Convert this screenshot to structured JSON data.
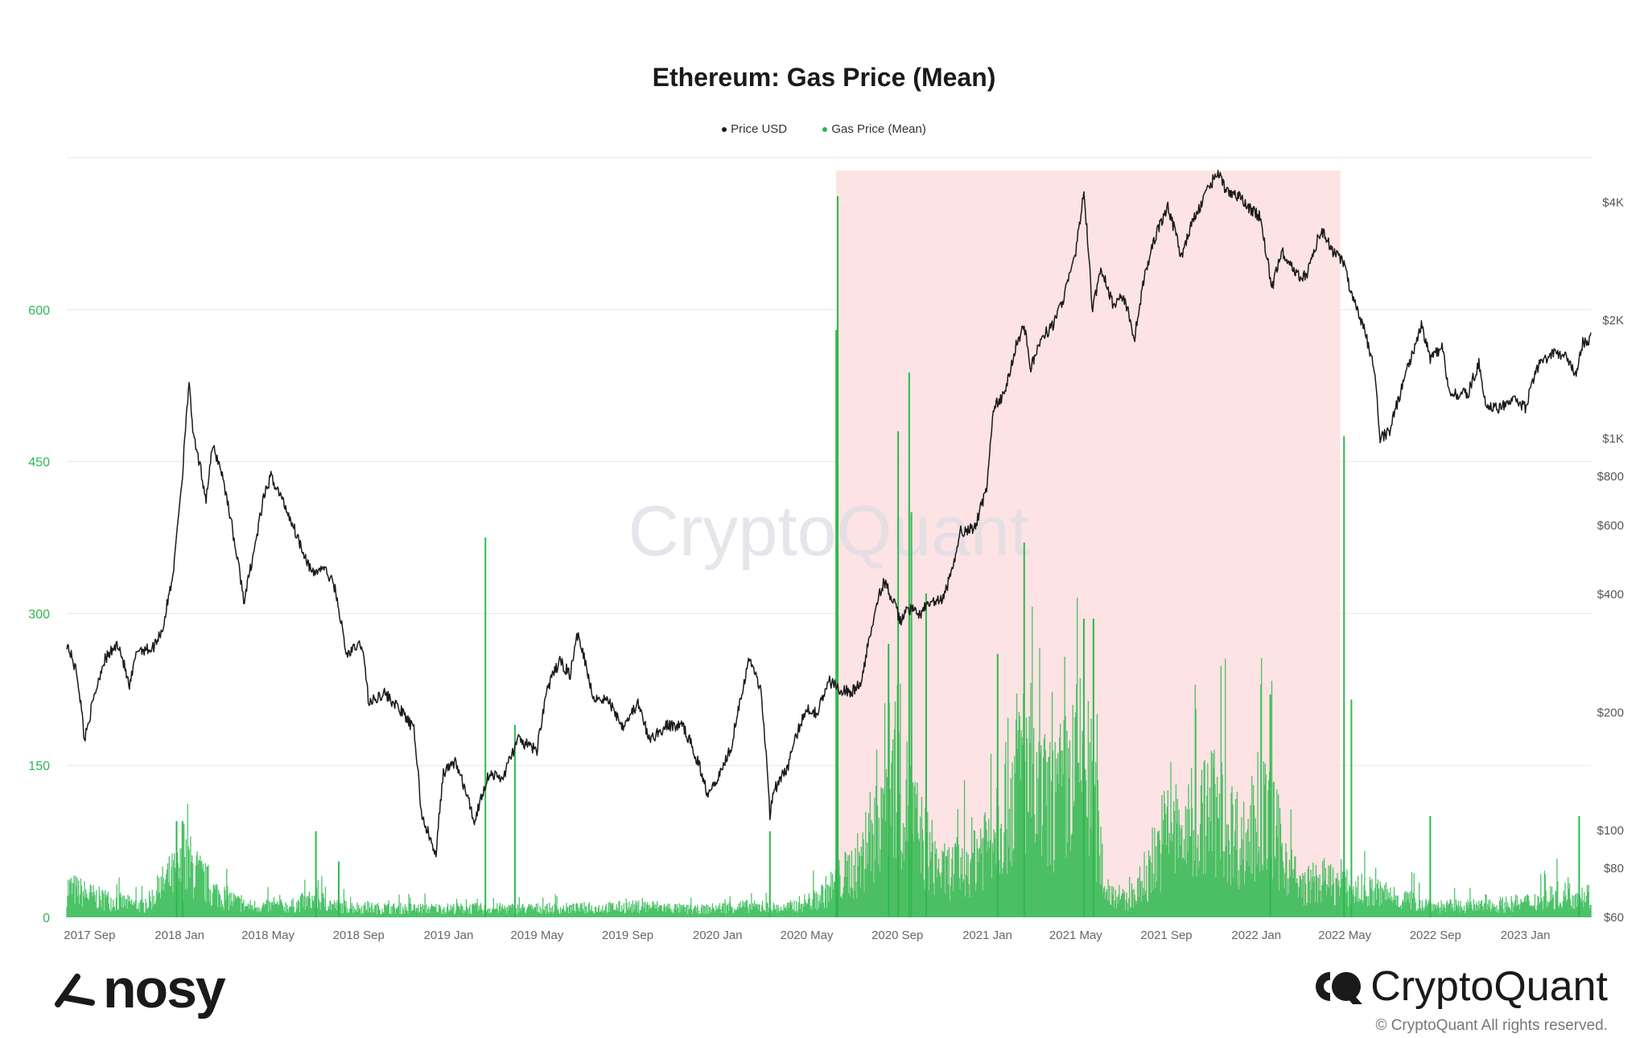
{
  "chart_data": {
    "type": "line",
    "title": "Ethereum: Gas Price (Mean)",
    "legend_placement": "top-center",
    "grid": true,
    "watermark": "CryptoQuant",
    "x_range": [
      "2017-08-01",
      "2023-04-01"
    ],
    "x_ticks": [
      "2017 Sep",
      "2018 Jan",
      "2018 May",
      "2018 Sep",
      "2019 Jan",
      "2019 May",
      "2019 Sep",
      "2020 Jan",
      "2020 May",
      "2020 Sep",
      "2021 Jan",
      "2021 May",
      "2021 Sep",
      "2022 Jan",
      "2022 May",
      "2022 Sep",
      "2023 Jan"
    ],
    "left_axis": {
      "scale": "linear",
      "range": [
        0,
        750
      ],
      "ticks": [
        0,
        150,
        300,
        450,
        600
      ],
      "tick_labels": [
        "0",
        "150",
        "300",
        "450",
        "600"
      ]
    },
    "right_axis": {
      "scale": "log",
      "range": [
        60,
        5200
      ],
      "ticks": [
        60,
        80,
        100,
        200,
        400,
        600,
        800,
        1000,
        2000,
        4000
      ],
      "tick_labels": [
        "$60",
        "$80",
        "$100",
        "$200",
        "$400",
        "$600",
        "$800",
        "$1K",
        "$2K",
        "$4K"
      ]
    },
    "highlight_region": {
      "x_start": "2020-06-10",
      "x_end": "2022-04-25",
      "color": "#fde1e1"
    },
    "series": [
      {
        "name": "Price USD",
        "axis": "right",
        "color": "#1a1a1a",
        "style": "line",
        "points": [
          [
            "2017-08-01",
            300
          ],
          [
            "2017-08-15",
            250
          ],
          [
            "2017-08-25",
            170
          ],
          [
            "2017-09-05",
            210
          ],
          [
            "2017-09-20",
            270
          ],
          [
            "2017-10-10",
            300
          ],
          [
            "2017-10-25",
            230
          ],
          [
            "2017-11-05",
            290
          ],
          [
            "2017-11-25",
            290
          ],
          [
            "2017-12-10",
            330
          ],
          [
            "2017-12-20",
            420
          ],
          [
            "2017-12-25",
            480
          ],
          [
            "2018-01-05",
            800
          ],
          [
            "2018-01-10",
            1150
          ],
          [
            "2018-01-14",
            1350
          ],
          [
            "2018-01-20",
            1000
          ],
          [
            "2018-02-06",
            700
          ],
          [
            "2018-02-15",
            950
          ],
          [
            "2018-02-25",
            850
          ],
          [
            "2018-03-18",
            520
          ],
          [
            "2018-03-30",
            380
          ],
          [
            "2018-04-15",
            550
          ],
          [
            "2018-04-25",
            700
          ],
          [
            "2018-05-05",
            800
          ],
          [
            "2018-05-20",
            700
          ],
          [
            "2018-06-10",
            560
          ],
          [
            "2018-06-30",
            450
          ],
          [
            "2018-07-15",
            470
          ],
          [
            "2018-07-30",
            420
          ],
          [
            "2018-08-15",
            280
          ],
          [
            "2018-09-05",
            300
          ],
          [
            "2018-09-15",
            210
          ],
          [
            "2018-10-05",
            225
          ],
          [
            "2018-10-30",
            200
          ],
          [
            "2018-11-15",
            180
          ],
          [
            "2018-11-25",
            110
          ],
          [
            "2018-12-15",
            85
          ],
          [
            "2018-12-25",
            140
          ],
          [
            "2019-01-10",
            150
          ],
          [
            "2019-02-05",
            105
          ],
          [
            "2019-02-25",
            140
          ],
          [
            "2019-03-15",
            135
          ],
          [
            "2019-04-05",
            170
          ],
          [
            "2019-05-01",
            160
          ],
          [
            "2019-05-15",
            230
          ],
          [
            "2019-06-01",
            270
          ],
          [
            "2019-06-15",
            250
          ],
          [
            "2019-06-26",
            320
          ],
          [
            "2019-07-15",
            220
          ],
          [
            "2019-08-05",
            215
          ],
          [
            "2019-08-25",
            185
          ],
          [
            "2019-09-15",
            210
          ],
          [
            "2019-09-30",
            170
          ],
          [
            "2019-10-25",
            185
          ],
          [
            "2019-11-15",
            185
          ],
          [
            "2019-12-05",
            150
          ],
          [
            "2019-12-18",
            125
          ],
          [
            "2020-01-05",
            140
          ],
          [
            "2020-01-20",
            165
          ],
          [
            "2020-02-14",
            275
          ],
          [
            "2020-02-28",
            230
          ],
          [
            "2020-03-12",
            110
          ],
          [
            "2020-03-16",
            125
          ],
          [
            "2020-04-05",
            145
          ],
          [
            "2020-04-30",
            205
          ],
          [
            "2020-05-15",
            200
          ],
          [
            "2020-06-01",
            240
          ],
          [
            "2020-06-15",
            230
          ],
          [
            "2020-07-01",
            225
          ],
          [
            "2020-07-15",
            240
          ],
          [
            "2020-07-25",
            310
          ],
          [
            "2020-08-05",
            390
          ],
          [
            "2020-08-14",
            430
          ],
          [
            "2020-08-25",
            390
          ],
          [
            "2020-09-05",
            340
          ],
          [
            "2020-09-15",
            370
          ],
          [
            "2020-09-30",
            355
          ],
          [
            "2020-10-15",
            380
          ],
          [
            "2020-11-01",
            385
          ],
          [
            "2020-11-15",
            460
          ],
          [
            "2020-11-25",
            580
          ],
          [
            "2020-12-15",
            590
          ],
          [
            "2020-12-31",
            740
          ],
          [
            "2021-01-10",
            1200
          ],
          [
            "2021-01-25",
            1300
          ],
          [
            "2021-02-10",
            1750
          ],
          [
            "2021-02-20",
            1950
          ],
          [
            "2021-03-01",
            1500
          ],
          [
            "2021-03-15",
            1800
          ],
          [
            "2021-04-01",
            1950
          ],
          [
            "2021-04-15",
            2300
          ],
          [
            "2021-05-01",
            2950
          ],
          [
            "2021-05-12",
            4200
          ],
          [
            "2021-05-23",
            2100
          ],
          [
            "2021-06-05",
            2700
          ],
          [
            "2021-06-20",
            2200
          ],
          [
            "2021-07-05",
            2300
          ],
          [
            "2021-07-20",
            1800
          ],
          [
            "2021-08-01",
            2500
          ],
          [
            "2021-08-15",
            3200
          ],
          [
            "2021-09-03",
            3900
          ],
          [
            "2021-09-21",
            2900
          ],
          [
            "2021-10-05",
            3500
          ],
          [
            "2021-10-25",
            4200
          ],
          [
            "2021-11-09",
            4800
          ],
          [
            "2021-11-20",
            4300
          ],
          [
            "2021-12-05",
            4200
          ],
          [
            "2021-12-20",
            3900
          ],
          [
            "2022-01-05",
            3700
          ],
          [
            "2022-01-22",
            2400
          ],
          [
            "2022-02-05",
            3000
          ],
          [
            "2022-02-25",
            2600
          ],
          [
            "2022-03-10",
            2600
          ],
          [
            "2022-03-30",
            3400
          ],
          [
            "2022-04-15",
            3000
          ],
          [
            "2022-04-30",
            2800
          ],
          [
            "2022-05-10",
            2300
          ],
          [
            "2022-05-25",
            1950
          ],
          [
            "2022-06-10",
            1500
          ],
          [
            "2022-06-18",
            1000
          ],
          [
            "2022-07-01",
            1050
          ],
          [
            "2022-07-15",
            1300
          ],
          [
            "2022-08-01",
            1650
          ],
          [
            "2022-08-13",
            1950
          ],
          [
            "2022-08-25",
            1600
          ],
          [
            "2022-09-10",
            1700
          ],
          [
            "2022-09-20",
            1300
          ],
          [
            "2022-10-15",
            1300
          ],
          [
            "2022-10-30",
            1550
          ],
          [
            "2022-11-09",
            1200
          ],
          [
            "2022-11-25",
            1200
          ],
          [
            "2022-12-15",
            1250
          ],
          [
            "2023-01-01",
            1200
          ],
          [
            "2023-01-20",
            1550
          ],
          [
            "2023-02-10",
            1650
          ],
          [
            "2023-02-28",
            1600
          ],
          [
            "2023-03-10",
            1450
          ],
          [
            "2023-03-20",
            1750
          ],
          [
            "2023-03-31",
            1800
          ]
        ]
      },
      {
        "name": "Gas Price (Mean)",
        "axis": "left",
        "color": "#2db84d",
        "style": "area-bars",
        "points": [
          [
            "2017-08-01",
            40
          ],
          [
            "2017-09-15",
            25
          ],
          [
            "2017-11-15",
            15
          ],
          [
            "2017-12-15",
            50
          ],
          [
            "2018-01-15",
            70
          ],
          [
            "2018-02-15",
            35
          ],
          [
            "2018-04-01",
            15
          ],
          [
            "2018-06-01",
            15
          ],
          [
            "2018-07-05",
            25
          ],
          [
            "2018-08-01",
            15
          ],
          [
            "2018-10-01",
            12
          ],
          [
            "2019-01-01",
            12
          ],
          [
            "2019-04-01",
            12
          ],
          [
            "2019-07-01",
            12
          ],
          [
            "2019-10-01",
            15
          ],
          [
            "2019-12-01",
            10
          ],
          [
            "2020-02-01",
            15
          ],
          [
            "2020-04-01",
            12
          ],
          [
            "2020-05-15",
            25
          ],
          [
            "2020-06-15",
            50
          ],
          [
            "2020-07-15",
            75
          ],
          [
            "2020-08-01",
            130
          ],
          [
            "2020-08-15",
            180
          ],
          [
            "2020-09-01",
            210
          ],
          [
            "2020-09-15",
            150
          ],
          [
            "2020-10-01",
            110
          ],
          [
            "2020-11-01",
            60
          ],
          [
            "2020-12-01",
            70
          ],
          [
            "2021-01-01",
            110
          ],
          [
            "2021-02-01",
            170
          ],
          [
            "2021-02-20",
            220
          ],
          [
            "2021-03-01",
            160
          ],
          [
            "2021-04-01",
            150
          ],
          [
            "2021-05-10",
            210
          ],
          [
            "2021-05-25",
            160
          ],
          [
            "2021-06-10",
            40
          ],
          [
            "2021-07-10",
            20
          ],
          [
            "2021-08-01",
            40
          ],
          [
            "2021-09-01",
            120
          ],
          [
            "2021-10-01",
            110
          ],
          [
            "2021-11-01",
            150
          ],
          [
            "2021-11-20",
            130
          ],
          [
            "2021-12-15",
            100
          ],
          [
            "2022-01-01",
            120
          ],
          [
            "2022-01-15",
            140
          ],
          [
            "2022-02-01",
            100
          ],
          [
            "2022-03-01",
            40
          ],
          [
            "2022-04-01",
            50
          ],
          [
            "2022-05-01",
            40
          ],
          [
            "2022-06-01",
            35
          ],
          [
            "2022-07-01",
            30
          ],
          [
            "2022-09-01",
            15
          ],
          [
            "2022-11-01",
            15
          ],
          [
            "2023-01-01",
            20
          ],
          [
            "2023-02-15",
            30
          ],
          [
            "2023-03-31",
            30
          ]
        ],
        "spikes": [
          [
            "2017-12-28",
            95
          ],
          [
            "2018-01-05",
            95
          ],
          [
            "2018-07-05",
            85
          ],
          [
            "2018-08-05",
            55
          ],
          [
            "2019-02-20",
            375
          ],
          [
            "2019-04-01",
            190
          ],
          [
            "2020-03-12",
            85
          ],
          [
            "2020-06-10",
            580
          ],
          [
            "2020-06-12",
            712
          ],
          [
            "2020-08-20",
            270
          ],
          [
            "2020-09-02",
            480
          ],
          [
            "2020-09-17",
            538
          ],
          [
            "2020-09-20",
            400
          ],
          [
            "2020-10-10",
            320
          ],
          [
            "2021-01-15",
            260
          ],
          [
            "2021-02-20",
            370
          ],
          [
            "2021-05-12",
            295
          ],
          [
            "2021-05-25",
            295
          ],
          [
            "2022-01-20",
            220
          ],
          [
            "2022-04-30",
            475
          ],
          [
            "2022-05-10",
            215
          ],
          [
            "2022-08-25",
            100
          ],
          [
            "2023-03-15",
            100
          ]
        ]
      }
    ]
  },
  "branding": {
    "nosy_logo_text": "nosy",
    "cryptoquant_logo_text": "CryptoQuant",
    "copyright": "© CryptoQuant All rights reserved."
  }
}
